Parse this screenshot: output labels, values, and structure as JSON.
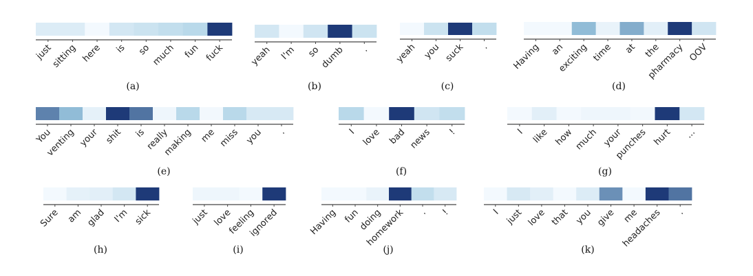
{
  "chart_data": [
    {
      "type": "heatmap",
      "label": "(a)",
      "tokens": [
        "just",
        "sitting",
        "here",
        "is",
        "so",
        "much",
        "fun",
        "fuck"
      ],
      "values": [
        0.15,
        0.15,
        0.02,
        0.2,
        0.25,
        0.3,
        0.35,
        1.0
      ]
    },
    {
      "type": "heatmap",
      "label": "(b)",
      "tokens": [
        "yeah",
        "I'm",
        "so",
        "dumb",
        "."
      ],
      "values": [
        0.2,
        0.02,
        0.22,
        1.0,
        0.25
      ]
    },
    {
      "type": "heatmap",
      "label": "(c)",
      "tokens": [
        "yeah",
        "you",
        "suck",
        "."
      ],
      "values": [
        0.02,
        0.25,
        1.0,
        0.3
      ]
    },
    {
      "type": "heatmap",
      "label": "(d)",
      "tokens": [
        "Having",
        "an",
        "exciting",
        "time",
        "at",
        "the",
        "pharmacy",
        "OOV"
      ],
      "values": [
        0.02,
        0.02,
        0.55,
        0.08,
        0.6,
        0.12,
        1.0,
        0.22
      ]
    },
    {
      "type": "heatmap",
      "label": "(e)",
      "tokens": [
        "You",
        "venting",
        "your",
        "shit",
        "is",
        "really",
        "making",
        "me",
        "miss",
        "you",
        "."
      ],
      "values": [
        0.75,
        0.55,
        0.1,
        1.0,
        0.8,
        0.05,
        0.35,
        0.03,
        0.35,
        0.18,
        0.18
      ]
    },
    {
      "type": "heatmap",
      "label": "(f)",
      "tokens": [
        "I",
        "love",
        "bad",
        "news",
        "!"
      ],
      "values": [
        0.35,
        0.02,
        1.0,
        0.22,
        0.3
      ]
    },
    {
      "type": "heatmap",
      "label": "(g)",
      "tokens": [
        "I",
        "like",
        "how",
        "much",
        "your",
        "punches",
        "hurt",
        "..."
      ],
      "values": [
        0.02,
        0.12,
        0.02,
        0.05,
        0.05,
        0.03,
        1.0,
        0.2
      ]
    },
    {
      "type": "heatmap",
      "label": "(h)",
      "tokens": [
        "Sure",
        "am",
        "glad",
        "I'm",
        "sick"
      ],
      "values": [
        0.02,
        0.1,
        0.12,
        0.2,
        1.0
      ]
    },
    {
      "type": "heatmap",
      "label": "(i)",
      "tokens": [
        "just",
        "love",
        "feeling",
        "ignored"
      ],
      "values": [
        0.05,
        0.05,
        0.02,
        1.0
      ]
    },
    {
      "type": "heatmap",
      "label": "(j)",
      "tokens": [
        "Having",
        "fun",
        "doing",
        "homework",
        ".",
        "!"
      ],
      "values": [
        0.02,
        0.02,
        0.08,
        1.0,
        0.3,
        0.18
      ]
    },
    {
      "type": "heatmap",
      "label": "(k)",
      "tokens": [
        "I",
        "just",
        "love",
        "that",
        "you",
        "give",
        "me",
        "headaches",
        "."
      ],
      "values": [
        0.02,
        0.18,
        0.12,
        0.02,
        0.15,
        0.7,
        0.02,
        1.0,
        0.8
      ]
    }
  ],
  "colors": {
    "low": "#f7fbff",
    "mid": "#9ecae1",
    "high": "#1e3a78",
    "axis": "#444444",
    "text": "#222222"
  }
}
